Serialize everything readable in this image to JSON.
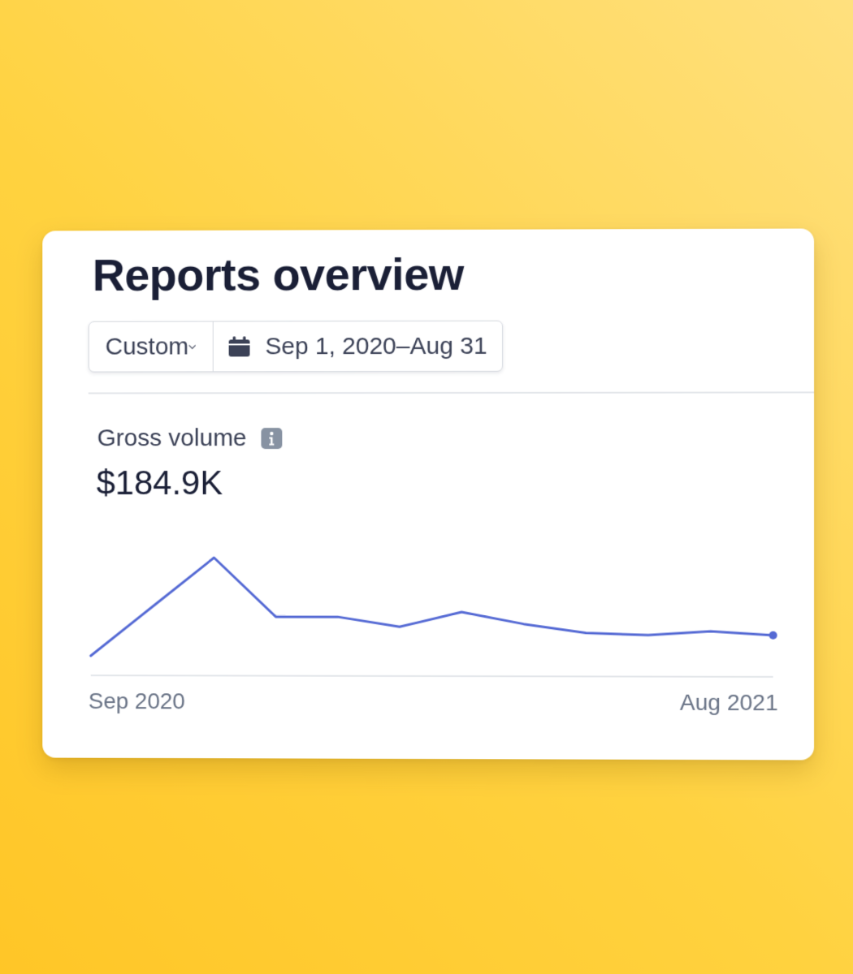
{
  "page": {
    "title": "Reports overview"
  },
  "filters": {
    "range_label": "Custom",
    "date_range": "Sep 1, 2020–Aug 31"
  },
  "metric": {
    "label": "Gross volume",
    "value": "$184.9K"
  },
  "icons": {
    "range_dropdown": "chevron-down-icon",
    "date": "calendar-icon",
    "info": "info-icon"
  },
  "colors": {
    "line": "#5469d4",
    "title": "#1a1f36",
    "text": "#3c4257",
    "muted": "#697386",
    "axis": "#e3e6ea"
  },
  "chart_data": {
    "type": "line",
    "x_labels": [
      "Sep 2020",
      "Aug 2021"
    ],
    "series": [
      {
        "values": [
          2,
          7,
          12,
          6,
          6,
          5,
          6.5,
          5.3,
          4.4,
          4.2,
          4.6,
          4.2
        ]
      }
    ],
    "ylim": [
      0,
      14
    ],
    "grid": false,
    "legend": "none"
  }
}
